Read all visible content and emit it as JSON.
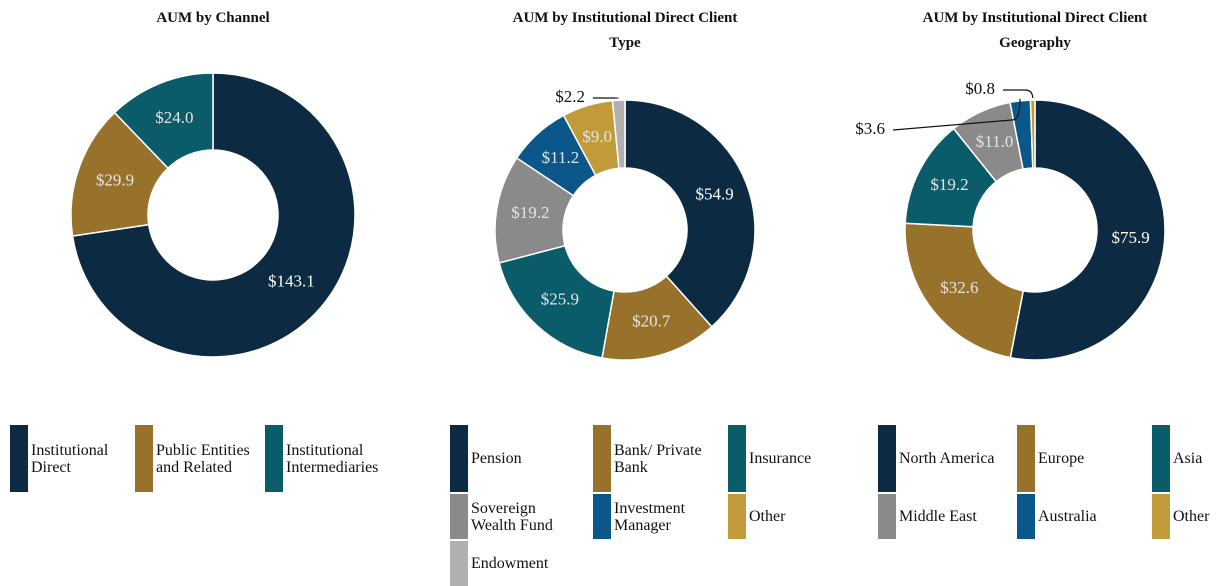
{
  "chart_data": [
    {
      "type": "donut",
      "title": "AUM by Channel",
      "categories": [
        "Institutional Direct",
        "Public Entities and Related",
        "Institutional Intermediaries"
      ],
      "values": [
        143.1,
        29.9,
        24.0
      ],
      "value_labels": [
        "$143.1",
        "$29.9",
        "$24.0"
      ],
      "colors": [
        "#0d2a43",
        "#98722a",
        "#0b5c6a"
      ]
    },
    {
      "type": "donut",
      "title": "AUM by Institutional Direct Client Type",
      "categories": [
        "Pension",
        "Bank/ Private Bank",
        "Insurance",
        "Sovereign Wealth Fund",
        "Investment Manager",
        "Other",
        "Endowment"
      ],
      "values": [
        54.9,
        20.7,
        25.9,
        19.2,
        11.2,
        9.0,
        2.2
      ],
      "value_labels": [
        "$54.9",
        "$20.7",
        "$25.9",
        "$19.2",
        "$11.2",
        "$9.0",
        "$2.2"
      ],
      "colors": [
        "#0d2a43",
        "#98722a",
        "#0b5c6a",
        "#8a8a8a",
        "#0b5789",
        "#c19a3a",
        "#b0b0b0"
      ]
    },
    {
      "type": "donut",
      "title": "AUM by Institutional Direct Client Geography",
      "categories": [
        "North America",
        "Europe",
        "Asia",
        "Middle East",
        "Australia",
        "Other"
      ],
      "values": [
        75.9,
        32.6,
        19.2,
        11.0,
        3.6,
        0.8
      ],
      "value_labels": [
        "$75.9",
        "$32.6",
        "$19.2",
        "$11.0",
        "$3.6",
        "$0.8"
      ],
      "colors": [
        "#0d2a43",
        "#98722a",
        "#0b5c6a",
        "#8a8a8a",
        "#0b5789",
        "#c19a3a"
      ]
    }
  ]
}
